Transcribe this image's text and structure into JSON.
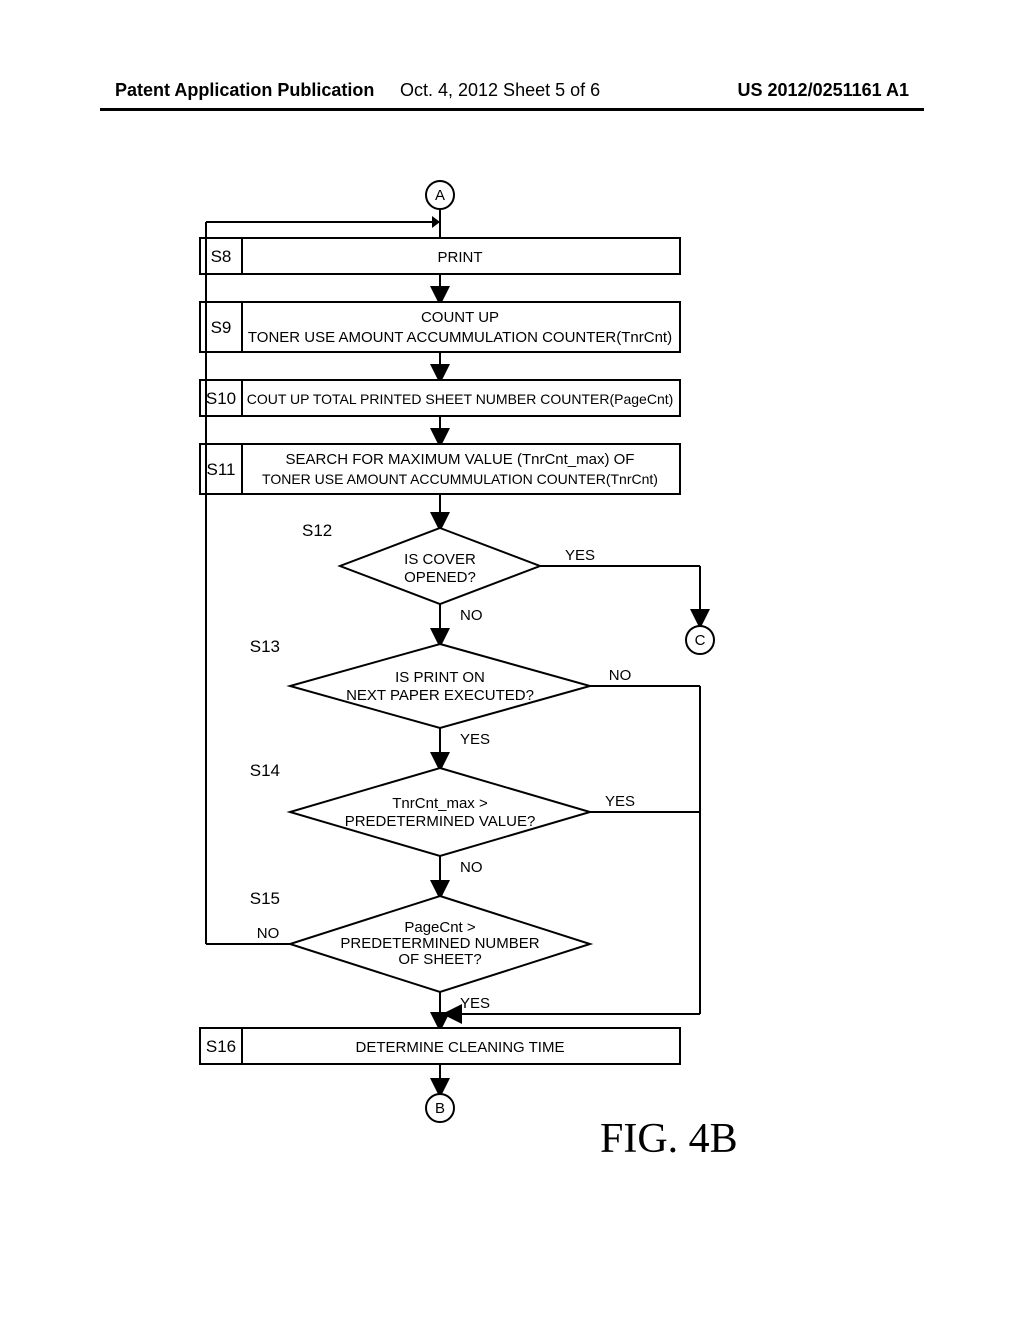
{
  "header": {
    "left": "Patent Application Publication",
    "mid": "Oct. 4, 2012   Sheet 5 of 6",
    "right": "US 2012/0251161 A1"
  },
  "figure_label": "FIG. 4B",
  "connectors": {
    "top": "A",
    "bottom": "B",
    "right": "C"
  },
  "steps": {
    "s8": {
      "label": "S8",
      "text": "PRINT"
    },
    "s9": {
      "label": "S9",
      "lines": [
        "COUNT UP",
        "TONER USE AMOUNT ACCUMMULATION COUNTER(TnrCnt)"
      ]
    },
    "s10": {
      "label": "S10",
      "text": "COUT UP TOTAL PRINTED SHEET NUMBER COUNTER(PageCnt)"
    },
    "s11": {
      "label": "S11",
      "lines": [
        "SEARCH FOR MAXIMUM VALUE (TnrCnt_max) OF",
        "TONER USE AMOUNT ACCUMMULATION COUNTER(TnrCnt)"
      ]
    },
    "s12": {
      "label": "S12",
      "lines": [
        "IS COVER",
        "OPENED?"
      ],
      "yes": "YES",
      "no": "NO"
    },
    "s13": {
      "label": "S13",
      "lines": [
        "IS PRINT ON",
        "NEXT PAPER EXECUTED?"
      ],
      "no_right": "NO",
      "yes_down": "YES"
    },
    "s14": {
      "label": "S14",
      "lines": [
        "TnrCnt_max >",
        "PREDETERMINED VALUE?"
      ],
      "yes": "YES",
      "no": "NO"
    },
    "s15": {
      "label": "S15",
      "lines": [
        "PageCnt >",
        "PREDETERMINED NUMBER",
        "OF SHEET?"
      ],
      "no_left": "NO",
      "yes_down": "YES"
    },
    "s16": {
      "label": "S16",
      "text": "DETERMINE CLEANING TIME"
    }
  },
  "style": {
    "box_stroke": "#000000",
    "box_fill": "#ffffff",
    "stroke_width": 2,
    "font_size_box": 15,
    "font_size_step": 17,
    "font_size_branch": 15,
    "connector_r": 14,
    "arrow_size": 8
  }
}
